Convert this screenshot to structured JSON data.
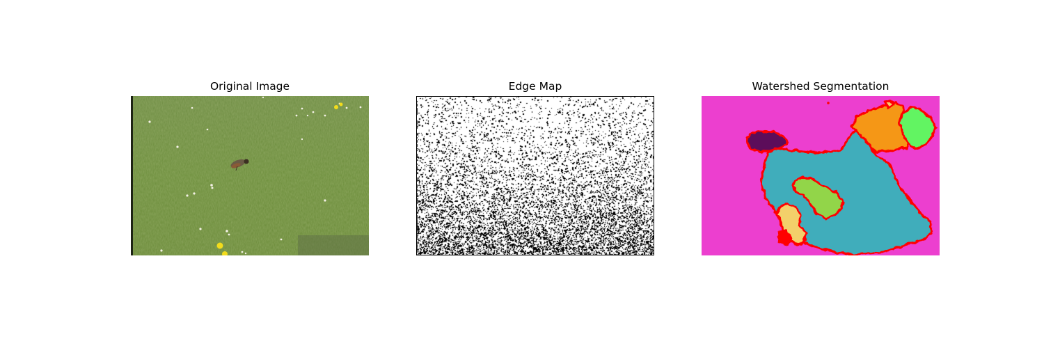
{
  "panels": [
    {
      "title": "Original Image"
    },
    {
      "title": "Edge Map"
    },
    {
      "title": "Watershed Segmentation"
    }
  ],
  "colors": {
    "background": "#ffffff",
    "grass": "#6f8f3e",
    "segment_background": "#ec3fcf",
    "segment_main": "#41adbb",
    "segment_orange": "#f59713",
    "segment_green": "#62f462",
    "segment_purple": "#5b0f5a",
    "segment_lime": "#92d54a",
    "segment_yellow": "#f3d06a",
    "boundary": "#ff0000"
  }
}
